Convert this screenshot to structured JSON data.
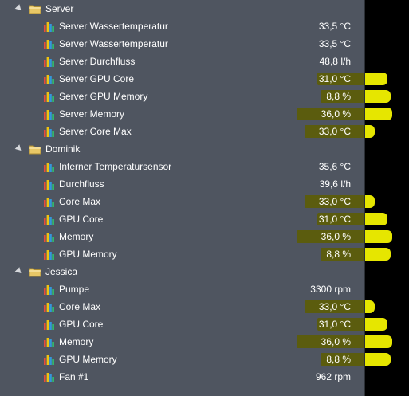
{
  "colors": {
    "panel_bg": "#4f5560",
    "highlight_yellow": "#e6e600",
    "highlight_on_panel": "#5b5c0e",
    "text": "#ffffff"
  },
  "groups": [
    {
      "name": "Server",
      "icon": "folder-icon",
      "sensors": [
        {
          "label": "Server Wassertemperatur",
          "value": "33,5 °C",
          "highlighted": false
        },
        {
          "label": "Server Wassertemperatur",
          "value": "33,5 °C",
          "highlighted": false
        },
        {
          "label": "Server Durchfluss",
          "value": "48,8 l/h",
          "highlighted": false
        },
        {
          "label": "Server GPU Core",
          "value": "31,0 °C",
          "highlighted": true
        },
        {
          "label": "Server GPU Memory",
          "value": "8,8 %",
          "highlighted": true
        },
        {
          "label": "Server Memory",
          "value": "36,0 %",
          "highlighted": true
        },
        {
          "label": "Server Core Max",
          "value": "33,0 °C",
          "highlighted": true
        }
      ]
    },
    {
      "name": "Dominik",
      "icon": "folder-icon",
      "sensors": [
        {
          "label": "Interner Temperatursensor",
          "value": "35,6 °C",
          "highlighted": false
        },
        {
          "label": "Durchfluss",
          "value": "39,6 l/h",
          "highlighted": false
        },
        {
          "label": "Core Max",
          "value": "33,0 °C",
          "highlighted": true
        },
        {
          "label": "GPU Core",
          "value": "31,0 °C",
          "highlighted": true
        },
        {
          "label": "Memory",
          "value": "36,0 %",
          "highlighted": true
        },
        {
          "label": "GPU Memory",
          "value": "8,8 %",
          "highlighted": true
        }
      ]
    },
    {
      "name": "Jessica",
      "icon": "folder-icon",
      "sensors": [
        {
          "label": "Pumpe",
          "value": "3300 rpm",
          "highlighted": false
        },
        {
          "label": "Core Max",
          "value": "33,0 °C",
          "highlighted": true
        },
        {
          "label": "GPU Core",
          "value": "31,0 °C",
          "highlighted": true
        },
        {
          "label": "Memory",
          "value": "36,0 %",
          "highlighted": true
        },
        {
          "label": "GPU Memory",
          "value": "8,8 %",
          "highlighted": true
        },
        {
          "label": "Fan #1",
          "value": "962 rpm",
          "highlighted": false
        }
      ]
    }
  ]
}
